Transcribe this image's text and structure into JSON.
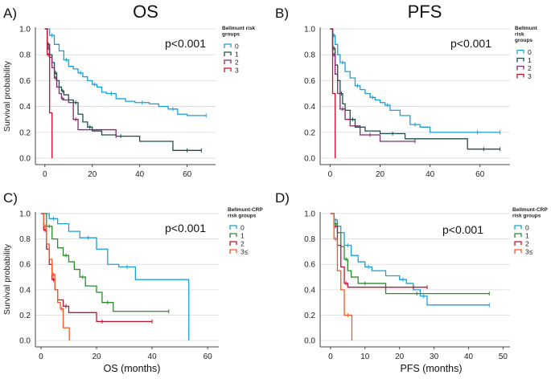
{
  "colors": {
    "0": "#1a9fd9",
    "1": "#2b8a2b",
    "2": "#7b2d6e",
    "3": "#f05a22",
    "red": "#c8102e",
    "dark": "#1f4e4a"
  },
  "chart_data": [
    {
      "type": "line",
      "panel_label": "A)",
      "title": "OS",
      "xlabel": "",
      "ylabel": "Survival probability",
      "xlim": [
        -4,
        72
      ],
      "ylim": [
        -0.05,
        1.0
      ],
      "xticks": [
        "0",
        "20",
        "40",
        "60"
      ],
      "yticks": [
        "0.0",
        "0.2",
        "0.4",
        "0.6",
        "0.8",
        "1.0"
      ],
      "p_value": "p<0.001",
      "legend_title": [
        "Bellmunt risk",
        "groups"
      ],
      "legend_items": [
        "0",
        "1",
        "2",
        "3"
      ],
      "series": [
        {
          "name": "0",
          "color": "#1a9fd9",
          "x": [
            0,
            2,
            4,
            6,
            8,
            10,
            12,
            14,
            16,
            18,
            20,
            22,
            24,
            26,
            30,
            34,
            38,
            44,
            48,
            52,
            56,
            60,
            68
          ],
          "y": [
            1.0,
            0.95,
            0.88,
            0.83,
            0.76,
            0.71,
            0.69,
            0.66,
            0.63,
            0.6,
            0.57,
            0.55,
            0.51,
            0.5,
            0.46,
            0.44,
            0.43,
            0.42,
            0.4,
            0.38,
            0.34,
            0.33,
            0.33
          ]
        },
        {
          "name": "1",
          "color": "#1f4e4a",
          "x": [
            0,
            1,
            2,
            3,
            4,
            5,
            6,
            7,
            8,
            10,
            12,
            14,
            16,
            18,
            20,
            24,
            30,
            34,
            40,
            54,
            66
          ],
          "y": [
            1.0,
            0.88,
            0.8,
            0.74,
            0.66,
            0.6,
            0.55,
            0.52,
            0.49,
            0.45,
            0.43,
            0.34,
            0.28,
            0.24,
            0.21,
            0.18,
            0.17,
            0.17,
            0.13,
            0.06,
            0.06
          ]
        },
        {
          "name": "2",
          "color": "#7b2d6e",
          "x": [
            0,
            1,
            2,
            3,
            4,
            5,
            6,
            7,
            8,
            10,
            12,
            14,
            20,
            30
          ],
          "y": [
            1.0,
            0.85,
            0.78,
            0.7,
            0.62,
            0.55,
            0.5,
            0.46,
            0.45,
            0.43,
            0.3,
            0.22,
            0.22,
            0.17
          ]
        },
        {
          "name": "3",
          "color": "#c8102e",
          "x": [
            0,
            1,
            2,
            3
          ],
          "y": [
            1.0,
            0.8,
            0.35,
            0.0
          ]
        }
      ]
    },
    {
      "type": "line",
      "panel_label": "B)",
      "title": "PFS",
      "xlabel": "",
      "ylabel": "",
      "xlim": [
        -4,
        72
      ],
      "ylim": [
        -0.05,
        1.0
      ],
      "xticks": [
        "0",
        "20",
        "40",
        "60"
      ],
      "yticks": [
        "0.0",
        "0.2",
        "0.4",
        "0.6",
        "0.8",
        "1.0"
      ],
      "p_value": "p<0.001",
      "legend_title": [
        "Bellmunt",
        "risk",
        "groups"
      ],
      "legend_items": [
        "0",
        "1",
        "2",
        "3"
      ],
      "series": [
        {
          "name": "0",
          "color": "#1a9fd9",
          "x": [
            0,
            1,
            2,
            3,
            4,
            6,
            8,
            10,
            12,
            14,
            16,
            18,
            20,
            22,
            24,
            28,
            32,
            36,
            40,
            50,
            68
          ],
          "y": [
            1.0,
            0.95,
            0.88,
            0.8,
            0.74,
            0.67,
            0.62,
            0.56,
            0.53,
            0.5,
            0.47,
            0.45,
            0.43,
            0.41,
            0.37,
            0.33,
            0.26,
            0.24,
            0.2,
            0.2,
            0.2
          ]
        },
        {
          "name": "1",
          "color": "#1f4e4a",
          "x": [
            0,
            1,
            2,
            3,
            4,
            5,
            6,
            8,
            10,
            14,
            20,
            30,
            40,
            55,
            68
          ],
          "y": [
            1.0,
            0.85,
            0.72,
            0.6,
            0.5,
            0.42,
            0.37,
            0.3,
            0.24,
            0.21,
            0.19,
            0.15,
            0.15,
            0.07,
            0.07
          ]
        },
        {
          "name": "2",
          "color": "#7b2d6e",
          "x": [
            0,
            1,
            2,
            3,
            4,
            6,
            8,
            12,
            20,
            34
          ],
          "y": [
            1.0,
            0.8,
            0.65,
            0.5,
            0.38,
            0.3,
            0.25,
            0.18,
            0.13,
            0.13
          ]
        },
        {
          "name": "3",
          "color": "#c8102e",
          "x": [
            0,
            1,
            2
          ],
          "y": [
            1.0,
            0.5,
            0.0
          ]
        }
      ]
    },
    {
      "type": "line",
      "panel_label": "C)",
      "title": "",
      "xlabel": "OS (months)",
      "ylabel": "Survival probability",
      "xlim": [
        -2,
        64
      ],
      "ylim": [
        -0.05,
        1.0
      ],
      "xticks": [
        "0",
        "20",
        "40",
        "60"
      ],
      "yticks": [
        "0.0",
        "0.2",
        "0.4",
        "0.6",
        "0.8",
        "1.0"
      ],
      "p_value": "p<0.001",
      "legend_title": [
        "Bellmunt-CRP",
        "risk groups"
      ],
      "legend_items": [
        "0",
        "1",
        "2",
        "3≤"
      ],
      "series": [
        {
          "name": "0",
          "color": "#1a9fd9",
          "x": [
            0,
            3,
            6,
            10,
            14,
            20,
            24,
            28,
            34,
            46,
            53,
            53.2
          ],
          "y": [
            1.0,
            0.96,
            0.92,
            0.86,
            0.81,
            0.72,
            0.6,
            0.58,
            0.48,
            0.48,
            0.48,
            0.0
          ]
        },
        {
          "name": "1",
          "color": "#2b8a2b",
          "x": [
            0,
            2,
            4,
            6,
            8,
            10,
            12,
            14,
            16,
            20,
            22,
            26,
            30,
            46
          ],
          "y": [
            1.0,
            0.9,
            0.8,
            0.73,
            0.67,
            0.62,
            0.56,
            0.5,
            0.43,
            0.38,
            0.3,
            0.23,
            0.23,
            0.23
          ]
        },
        {
          "name": "2",
          "color": "#c8102e",
          "x": [
            0,
            1,
            2,
            3,
            4,
            5,
            6,
            8,
            10,
            14,
            20,
            24,
            30,
            40
          ],
          "y": [
            1.0,
            0.87,
            0.72,
            0.6,
            0.48,
            0.4,
            0.32,
            0.27,
            0.22,
            0.22,
            0.15,
            0.15,
            0.15,
            0.15
          ]
        },
        {
          "name": "3",
          "color": "#f05a22",
          "x": [
            0,
            1,
            2,
            3,
            4,
            5,
            6,
            7,
            8,
            10,
            10.2
          ],
          "y": [
            1.0,
            0.9,
            0.76,
            0.64,
            0.52,
            0.4,
            0.3,
            0.25,
            0.1,
            0.1,
            0.0
          ]
        }
      ]
    },
    {
      "type": "line",
      "panel_label": "D)",
      "title": "",
      "xlabel": "PFS (months)",
      "ylabel": "",
      "xlim": [
        -3,
        52
      ],
      "ylim": [
        -0.05,
        1.0
      ],
      "xticks": [
        "0",
        "10",
        "20",
        "30",
        "40",
        "50"
      ],
      "yticks": [
        "0.0",
        "0.2",
        "0.4",
        "0.6",
        "0.8",
        "1.0"
      ],
      "p_value": "p<0.001",
      "legend_title": [
        "Bellmunt-CRP",
        "risk groups"
      ],
      "legend_items": [
        "0",
        "1",
        "2",
        "3≤"
      ],
      "series": [
        {
          "name": "0",
          "color": "#1a9fd9",
          "x": [
            0,
            1,
            2,
            3,
            4,
            6,
            8,
            10,
            12,
            16,
            20,
            22,
            24,
            26,
            28,
            46
          ],
          "y": [
            1.0,
            0.95,
            0.9,
            0.85,
            0.75,
            0.67,
            0.62,
            0.58,
            0.55,
            0.51,
            0.48,
            0.45,
            0.4,
            0.35,
            0.28,
            0.28
          ]
        },
        {
          "name": "1",
          "color": "#2b8a2b",
          "x": [
            0,
            1,
            2,
            3,
            4,
            5,
            6,
            8,
            12,
            16,
            20,
            30,
            46
          ],
          "y": [
            1.0,
            0.92,
            0.85,
            0.74,
            0.64,
            0.55,
            0.5,
            0.45,
            0.45,
            0.37,
            0.37,
            0.37,
            0.37
          ]
        },
        {
          "name": "2",
          "color": "#c8102e",
          "x": [
            0,
            1,
            2,
            3,
            4,
            5,
            10,
            20,
            28
          ],
          "y": [
            1.0,
            0.9,
            0.75,
            0.58,
            0.45,
            0.42,
            0.42,
            0.42,
            0.42
          ]
        },
        {
          "name": "3",
          "color": "#f05a22",
          "x": [
            0,
            1,
            2,
            3,
            4,
            6,
            6.2
          ],
          "y": [
            1.0,
            0.8,
            0.55,
            0.4,
            0.2,
            0.2,
            0.0
          ]
        }
      ]
    }
  ]
}
